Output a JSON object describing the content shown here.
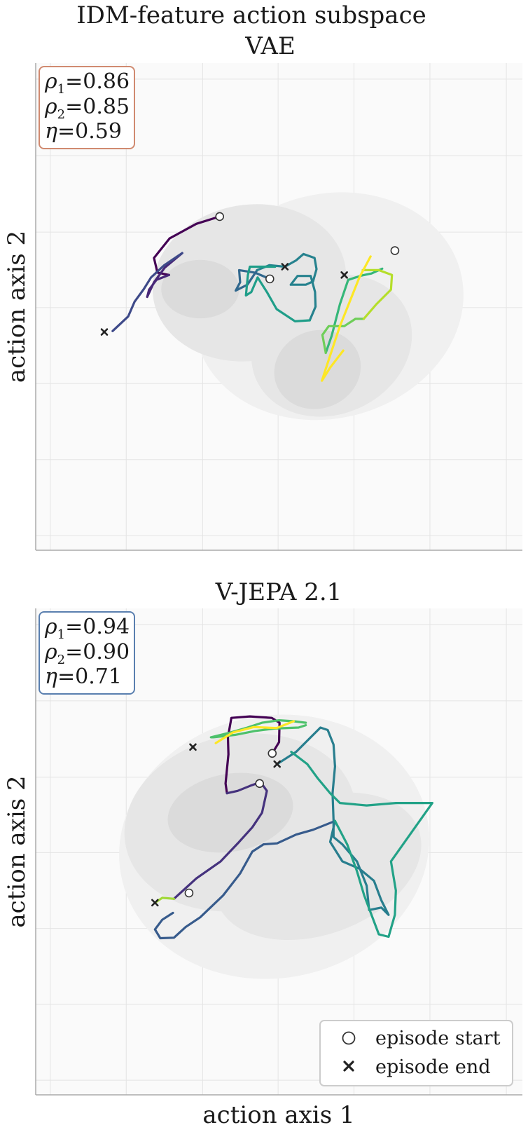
{
  "figure": {
    "title": "IDM-feature action subspace",
    "xlabel": "action axis 1",
    "ylabel": "action axis 2",
    "background": "#fafafa",
    "grid": true,
    "trajectory_colormap": "viridis",
    "legend": {
      "placement": "lower-right",
      "items": [
        {
          "marker": "open-circle",
          "label": "episode start"
        },
        {
          "marker": "x",
          "label": "episode end"
        }
      ]
    }
  },
  "chart_data": [
    {
      "type": "line",
      "title": "VAE",
      "xlabel": "",
      "ylabel": "action axis 2",
      "xlim": [
        0,
        100
      ],
      "ylim": [
        0,
        100
      ],
      "stats": {
        "rho1": "0.86",
        "rho2": "0.85",
        "eta": "0.59"
      },
      "stat_box_color": "#d08a70",
      "density_colors": [
        "#f0f0f0",
        "#e6e6e6",
        "#dbdbdb",
        "#cfcfcf"
      ],
      "density_levels": [
        {
          "cx": 60.2,
          "cy": 50.1,
          "rx": 28,
          "ry": 23,
          "rot": -15
        },
        {
          "cx": 43.9,
          "cy": 54.9,
          "rx": 20,
          "ry": 16,
          "rot": -10
        },
        {
          "cx": 60.8,
          "cy": 42.0,
          "rx": 17,
          "ry": 14,
          "rot": -25
        },
        {
          "cx": 33.8,
          "cy": 53.6,
          "rx": 8,
          "ry": 6,
          "rot": 0
        },
        {
          "cx": 57.9,
          "cy": 37.1,
          "rx": 9,
          "ry": 8,
          "rot": -20
        }
      ],
      "starts": [
        [
          37.8,
          68.5
        ],
        [
          48.1,
          55.7
        ],
        [
          73.8,
          61.5
        ]
      ],
      "ends": [
        [
          14.1,
          44.8
        ],
        [
          51.2,
          58.2
        ],
        [
          63.4,
          56.5
        ]
      ],
      "series": [
        {
          "points": [
            [
              37.8,
              68.5
            ],
            [
              33.0,
              67.0
            ],
            [
              27.5,
              64.0
            ],
            [
              24.3,
              60.0
            ],
            [
              25.0,
              57.0
            ],
            [
              27.4,
              56.5
            ]
          ]
        },
        {
          "points": [
            [
              27.4,
              56.5
            ],
            [
              24.8,
              55.5
            ],
            [
              23.3,
              53.5
            ],
            [
              22.9,
              52.0
            ],
            [
              24.3,
              55.0
            ],
            [
              26.5,
              58.0
            ],
            [
              30.1,
              61.0
            ]
          ]
        },
        {
          "points": [
            [
              30.1,
              61.0
            ],
            [
              26.4,
              58.5
            ],
            [
              23.7,
              56.0
            ],
            [
              22.2,
              53.6
            ],
            [
              20.3,
              51.0
            ],
            [
              19.0,
              48.0
            ],
            [
              15.8,
              45.0
            ]
          ]
        },
        {
          "points": [
            [
              48.1,
              55.7
            ],
            [
              45.0,
              57.0
            ],
            [
              41.8,
              57.5
            ],
            [
              42.0,
              55.0
            ],
            [
              41.1,
              53.3
            ],
            [
              43.5,
              54.5
            ],
            [
              45.5,
              57.5
            ]
          ]
        },
        {
          "points": [
            [
              45.5,
              57.5
            ],
            [
              48.0,
              58.5
            ],
            [
              51.2,
              58.2
            ],
            [
              53.5,
              59.5
            ],
            [
              55.0,
              60.8
            ],
            [
              57.3,
              60.0
            ],
            [
              57.7,
              57.7
            ],
            [
              57.0,
              55.2
            ],
            [
              55.5,
              54.5
            ],
            [
              52.4,
              54.5
            ],
            [
              53.8,
              56.3
            ],
            [
              56.5,
              56.3
            ],
            [
              57.4,
              53.0
            ],
            [
              57.5,
              50.0
            ],
            [
              56.3,
              47.2
            ]
          ]
        },
        {
          "points": [
            [
              56.3,
              47.2
            ],
            [
              53.3,
              47.0
            ],
            [
              49.5,
              49.5
            ],
            [
              47.5,
              53.0
            ],
            [
              45.6,
              56.0
            ],
            [
              44.3,
              53.0
            ],
            [
              43.2,
              52.3
            ],
            [
              43.6,
              56.5
            ],
            [
              44.0,
              58.2
            ],
            [
              49.2,
              58.2
            ]
          ]
        },
        {
          "points": [
            [
              71.2,
              57.8
            ],
            [
              69.0,
              56.8
            ],
            [
              67.0,
              56.4
            ],
            [
              64.2,
              55.5
            ],
            [
              62.5,
              50.5
            ],
            [
              60.8,
              44.0
            ],
            [
              59.6,
              40.5
            ]
          ]
        },
        {
          "points": [
            [
              59.6,
              40.5
            ],
            [
              58.9,
              44.2
            ],
            [
              60.2,
              46.0
            ],
            [
              63.4,
              46.0
            ],
            [
              65.7,
              47.5
            ],
            [
              67.4,
              47.5
            ]
          ]
        },
        {
          "points": [
            [
              67.4,
              47.5
            ],
            [
              70.0,
              50.5
            ],
            [
              73.0,
              53.5
            ],
            [
              73.2,
              56.5
            ],
            [
              70.5,
              57.5
            ],
            [
              67.2,
              57.5
            ]
          ]
        },
        {
          "points": [
            [
              63.2,
              41.0
            ],
            [
              60.5,
              37.5
            ],
            [
              58.8,
              34.8
            ],
            [
              60.5,
              40.0
            ],
            [
              62.5,
              46.0
            ],
            [
              64.5,
              51.0
            ],
            [
              66.5,
              56.0
            ],
            [
              68.8,
              60.3
            ]
          ]
        }
      ]
    },
    {
      "type": "line",
      "title": "V-JEPA 2.1",
      "xlabel": "action axis 1",
      "ylabel": "action axis 2",
      "xlim": [
        0,
        100
      ],
      "ylim": [
        0,
        100
      ],
      "stats": {
        "rho1": "0.94",
        "rho2": "0.90",
        "eta": "0.71"
      },
      "stat_box_color": "#5a7faf",
      "density_colors": [
        "#f0f0f0",
        "#e6e6e6",
        "#dbdbdb",
        "#cfcfcf"
      ],
      "density_levels": [
        {
          "cx": 49.0,
          "cy": 51.0,
          "rx": 32,
          "ry": 27,
          "rot": -10
        },
        {
          "cx": 42.0,
          "cy": 56.0,
          "rx": 24,
          "ry": 18,
          "rot": -12
        },
        {
          "cx": 58.0,
          "cy": 47.0,
          "rx": 22,
          "ry": 14,
          "rot": -20
        },
        {
          "cx": 40.0,
          "cy": 58.0,
          "rx": 13,
          "ry": 8,
          "rot": -10
        }
      ],
      "starts": [
        [
          31.5,
          41.5
        ],
        [
          46.0,
          64.0
        ],
        [
          48.6,
          70.2
        ]
      ],
      "ends": [
        [
          24.5,
          39.5
        ],
        [
          32.3,
          71.5
        ],
        [
          49.6,
          68.0
        ]
      ],
      "series": [
        {
          "points": [
            [
              48.6,
              70.2
            ],
            [
              50.0,
              72.5
            ],
            [
              50.1,
              76.5
            ],
            [
              48.5,
              77.5
            ],
            [
              44.0,
              77.8
            ],
            [
              40.2,
              77.5
            ],
            [
              39.5,
              73.5
            ],
            [
              39.6,
              70.0
            ],
            [
              39.0,
              64.0
            ],
            [
              39.3,
              62.0
            ]
          ]
        },
        {
          "points": [
            [
              39.3,
              62.0
            ],
            [
              41.5,
              62.5
            ],
            [
              44.0,
              63.5
            ],
            [
              46.2,
              64.3
            ],
            [
              47.5,
              62.5
            ],
            [
              46.5,
              58.0
            ],
            [
              44.5,
              55.0
            ],
            [
              41.8,
              52.0
            ],
            [
              38.0,
              48.0
            ],
            [
              33.0,
              44.5
            ],
            [
              28.4,
              40.3
            ]
          ]
        },
        {
          "points": [
            [
              28.2,
              37.4
            ],
            [
              26.0,
              36.0
            ],
            [
              24.5,
              34.0
            ],
            [
              25.6,
              32.2
            ],
            [
              28.4,
              32.3
            ],
            [
              30.8,
              34.5
            ],
            [
              33.8,
              36.5
            ],
            [
              38.5,
              41.0
            ],
            [
              42.0,
              45.5
            ],
            [
              44.5,
              50.0
            ],
            [
              46.8,
              51.5
            ],
            [
              49.6,
              51.7
            ],
            [
              53.5,
              53.5
            ],
            [
              57.0,
              54.5
            ],
            [
              61.5,
              56.3
            ]
          ]
        },
        {
          "points": [
            [
              61.5,
              56.3
            ],
            [
              60.5,
              52.0
            ],
            [
              63.0,
              48.0
            ],
            [
              66.5,
              46.5
            ],
            [
              69.5,
              44.0
            ],
            [
              71.0,
              40.0
            ],
            [
              72.5,
              37.0
            ],
            [
              71.0,
              38.5
            ],
            [
              68.5,
              38.0
            ],
            [
              68.0,
              43.0
            ],
            [
              66.0,
              48.0
            ],
            [
              63.0,
              51.5
            ],
            [
              61.2,
              53.0
            ],
            [
              61.2,
              56.5
            ],
            [
              61.0,
              62.0
            ],
            [
              61.5,
              67.5
            ],
            [
              61.2,
              72.0
            ],
            [
              60.0,
              75.0
            ],
            [
              58.5,
              75.5
            ],
            [
              56.0,
              73.0
            ],
            [
              53.5,
              70.5
            ],
            [
              49.6,
              68.0
            ]
          ]
        },
        {
          "points": [
            [
              61.5,
              56.3
            ],
            [
              64.0,
              51.5
            ],
            [
              66.0,
              46.0
            ],
            [
              67.5,
              41.0
            ],
            [
              69.0,
              37.0
            ],
            [
              70.5,
              33.0
            ],
            [
              72.5,
              32.5
            ],
            [
              73.8,
              37.0
            ],
            [
              74.0,
              42.0
            ],
            [
              73.0,
              48.0
            ],
            [
              81.5,
              60.0
            ],
            [
              74.0,
              60.0
            ],
            [
              68.0,
              59.5
            ],
            [
              62.5,
              60.0
            ],
            [
              60.5,
              62.0
            ],
            [
              58.0,
              65.0
            ],
            [
              55.8,
              68.0
            ],
            [
              52.5,
              70.5
            ]
          ]
        },
        {
          "points": [
            [
              55.5,
              76.5
            ],
            [
              53.0,
              76.8
            ],
            [
              50.0,
              77.0
            ],
            [
              46.5,
              76.5
            ],
            [
              43.5,
              75.5
            ],
            [
              40.0,
              74.5
            ],
            [
              36.0,
              73.5
            ],
            [
              36.5,
              73.5
            ],
            [
              41.0,
              74.0
            ],
            [
              45.0,
              74.8
            ],
            [
              49.0,
              75.3
            ],
            [
              54.0,
              75.5
            ],
            [
              55.5,
              76.0
            ]
          ]
        },
        {
          "points": [
            [
              24.5,
              39.5
            ],
            [
              26.0,
              40.5
            ],
            [
              28.4,
              40.3
            ]
          ]
        },
        {
          "points": [
            [
              37.0,
              72.3
            ],
            [
              40.5,
              74.5
            ],
            [
              44.8,
              75.6
            ],
            [
              49.5,
              75.4
            ],
            [
              53.0,
              76.8
            ]
          ]
        }
      ]
    }
  ]
}
